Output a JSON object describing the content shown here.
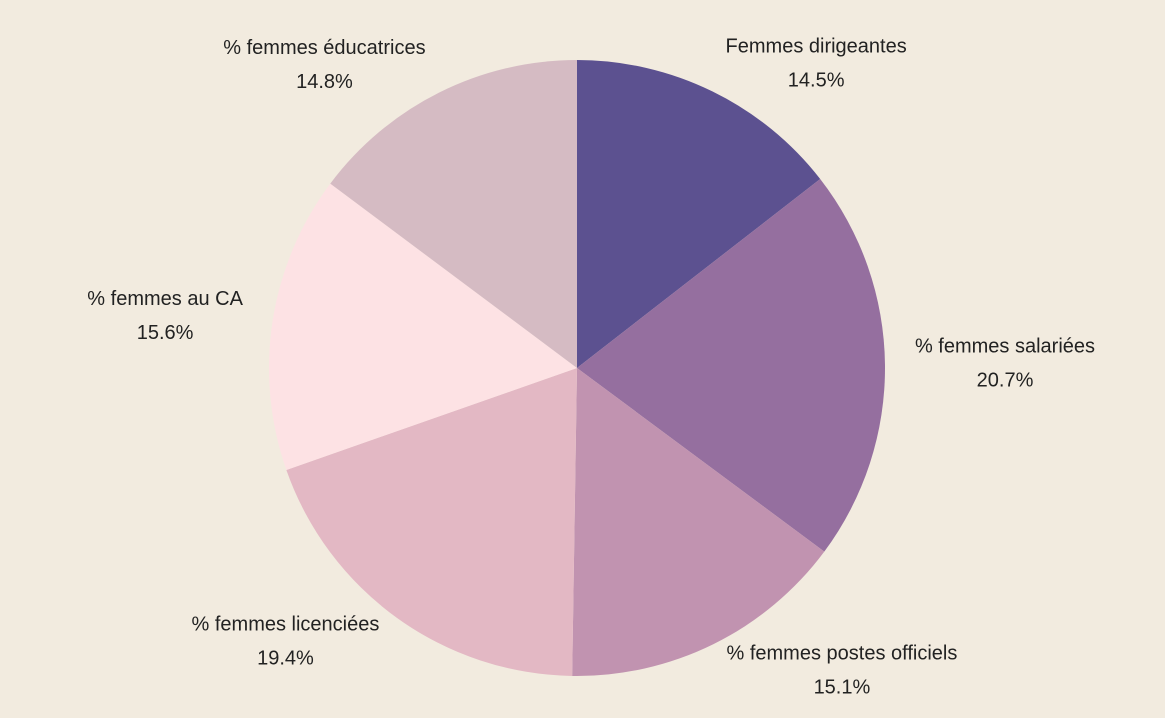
{
  "chart_data": {
    "type": "pie",
    "categories": [
      "Femmes dirigeantes",
      "% femmes salariées",
      "% femmes postes officiels",
      "% femmes licenciées",
      "% femmes au CA",
      "% femmes éducatrices"
    ],
    "values": [
      14.5,
      20.7,
      15.1,
      19.4,
      15.6,
      14.8
    ],
    "value_labels": [
      "14.5%",
      "20.7%",
      "15.1%",
      "19.4%",
      "15.6%",
      "14.8%"
    ],
    "colors": [
      "#5c5190",
      "#956f9f",
      "#c193b0",
      "#e3b8c4",
      "#fde2e4",
      "#d5bbc3"
    ]
  }
}
